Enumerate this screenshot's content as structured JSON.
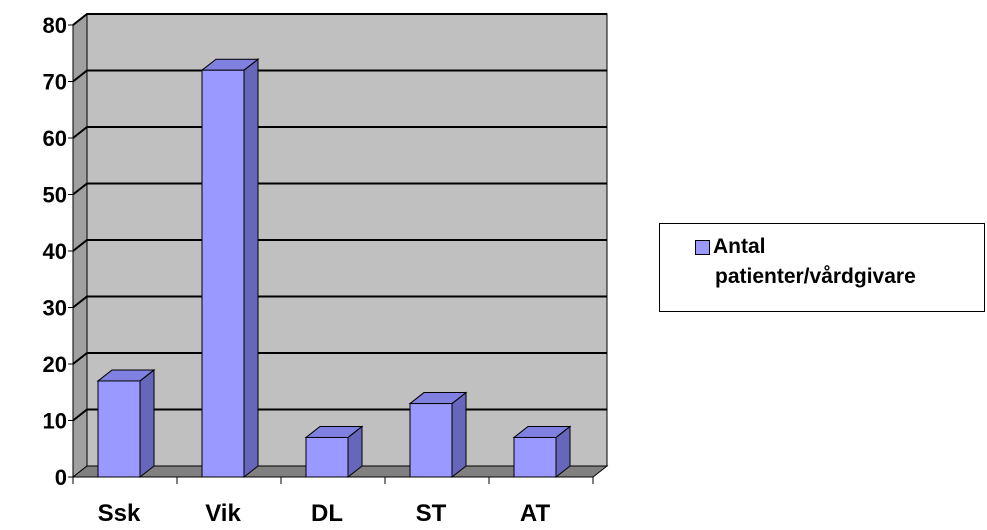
{
  "chart_data": {
    "type": "bar",
    "categories": [
      "Ssk",
      "Vik",
      "DL",
      "ST",
      "AT"
    ],
    "series": [
      {
        "name": "Antal patienter/vårdgivare",
        "values": [
          17,
          72,
          7,
          13,
          7
        ]
      }
    ],
    "yticks": [
      "0",
      "10",
      "20",
      "30",
      "40",
      "50",
      "60",
      "70",
      "80"
    ],
    "ylim": [
      0,
      80
    ],
    "grid": true,
    "legend_position": "right",
    "colors": {
      "bar_front": "#9999ff",
      "bar_side": "#6666bb",
      "bar_top": "#8080e0",
      "wall": "#c0c0c0",
      "wall_side": "#a0a0a0",
      "floor": "#808080"
    }
  },
  "legend": {
    "line1": "Antal",
    "line2": "patienter/vårdgivare"
  }
}
